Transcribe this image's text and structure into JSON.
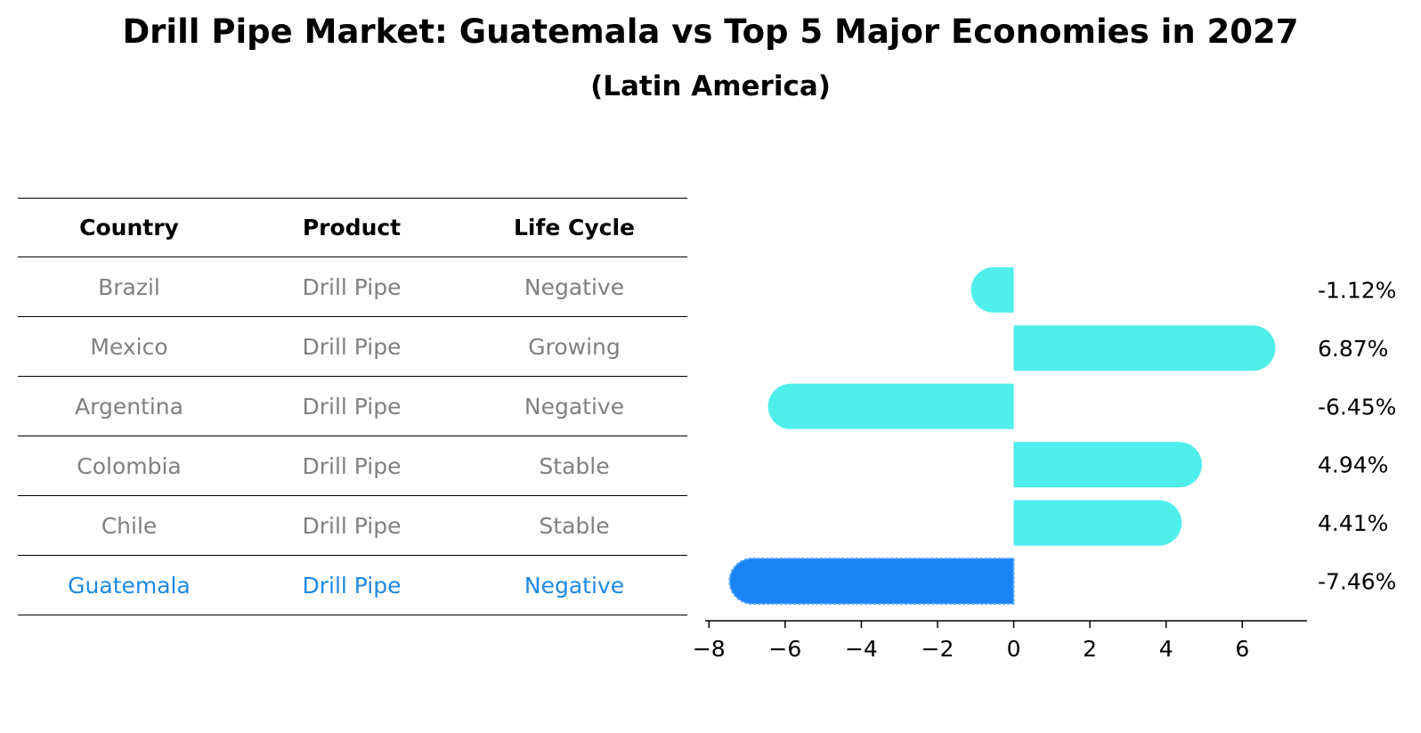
{
  "header": {
    "title": "Drill Pipe Market: Guatemala vs Top 5 Major Economies in 2027",
    "subtitle": "(Latin America)"
  },
  "table": {
    "columns": [
      "Country",
      "Product",
      "Life Cycle"
    ],
    "rows": [
      {
        "country": "Brazil",
        "product": "Drill Pipe",
        "life_cycle": "Negative"
      },
      {
        "country": "Mexico",
        "product": "Drill Pipe",
        "life_cycle": "Growing"
      },
      {
        "country": "Argentina",
        "product": "Drill Pipe",
        "life_cycle": "Negative"
      },
      {
        "country": "Colombia",
        "product": "Drill Pipe",
        "life_cycle": "Stable"
      },
      {
        "country": "Chile",
        "product": "Drill Pipe",
        "life_cycle": "Stable"
      },
      {
        "country": "Guatemala",
        "product": "Drill Pipe",
        "life_cycle": "Negative"
      }
    ],
    "highlight_row": 5
  },
  "colors": {
    "bar": "#4eeeea",
    "highlight_bar": "#1a84f5",
    "highlight_text": "#1e88e5",
    "muted_text": "#808080"
  },
  "chart_data": {
    "type": "bar",
    "orientation": "horizontal",
    "title": "Drill Pipe Market: Guatemala vs Top 5 Major Economies in 2027",
    "subtitle": "(Latin America)",
    "categories": [
      "Brazil",
      "Mexico",
      "Argentina",
      "Colombia",
      "Chile",
      "Guatemala"
    ],
    "values": [
      -1.12,
      6.87,
      -6.45,
      4.94,
      4.41,
      -7.46
    ],
    "value_labels": [
      "-1.12%",
      "6.87%",
      "-6.45%",
      "4.94%",
      "4.41%",
      "-7.46%"
    ],
    "highlight_category": "Guatemala",
    "xlim": [
      -8.1,
      7.7
    ],
    "xticks": [
      -8,
      -6,
      -4,
      -2,
      0,
      2,
      4,
      6
    ],
    "xtick_labels": [
      "−8",
      "−6",
      "−4",
      "−2",
      "0",
      "2",
      "4",
      "6"
    ],
    "xlabel": "",
    "ylabel": "",
    "grid": false
  }
}
